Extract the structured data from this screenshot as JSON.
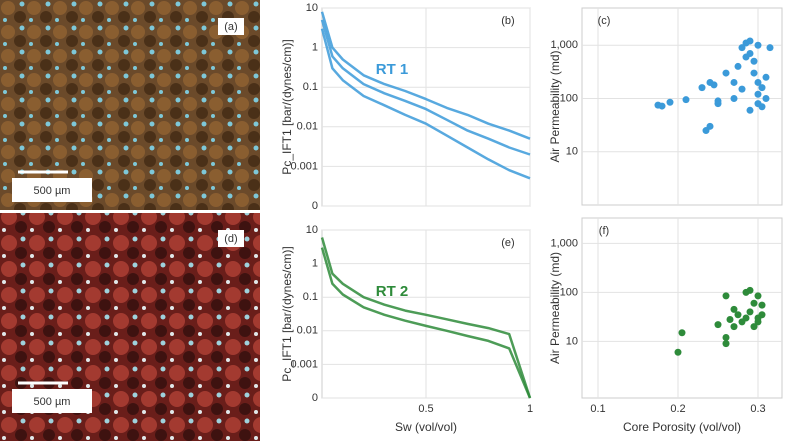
{
  "images": [
    {
      "label": "(a)",
      "scale": "500 µm"
    },
    {
      "label": "(d)",
      "scale": "500 µm"
    }
  ],
  "chart_data": [
    {
      "type": "line",
      "panel_label": "(b)",
      "annotation": "RT 1",
      "ylabel": "Pc_IFT1 [bar/(dynes/cm)]",
      "ylog": true,
      "ylim": [
        0.0001,
        10
      ],
      "yticks": [
        {
          "value": 0.0001,
          "label": "0"
        },
        0.001,
        0.01,
        0.1,
        1,
        10
      ],
      "xlim": [
        0,
        1
      ],
      "xticks": [
        0.5,
        1
      ],
      "show_xtick_labels": false,
      "grid": true,
      "x": [
        0,
        0.05,
        0.1,
        0.2,
        0.3,
        0.4,
        0.5,
        0.6,
        0.7,
        0.8,
        0.9,
        1
      ],
      "series": [
        {
          "color": "#3b9ad9",
          "values": [
            8,
            1.0,
            0.5,
            0.2,
            0.12,
            0.08,
            0.05,
            0.03,
            0.02,
            0.012,
            0.008,
            0.005
          ]
        },
        {
          "color": "#3b9ad9",
          "values": [
            5,
            0.6,
            0.3,
            0.12,
            0.07,
            0.045,
            0.028,
            0.015,
            0.008,
            0.005,
            0.003,
            0.002
          ]
        },
        {
          "color": "#3b9ad9",
          "values": [
            3,
            0.3,
            0.15,
            0.06,
            0.035,
            0.02,
            0.012,
            0.006,
            0.003,
            0.0015,
            0.0008,
            0.0005
          ]
        }
      ]
    },
    {
      "type": "scatter",
      "panel_label": "(c)",
      "ylabel": "Air Permeability (md)",
      "ylog": true,
      "ylim": [
        1,
        5000
      ],
      "yticks": [
        10,
        100,
        {
          "value": 1000,
          "label": "1,000"
        }
      ],
      "xlim": [
        0.08,
        0.33
      ],
      "xticks": [
        0.1,
        0.2,
        0.3
      ],
      "show_xtick_labels": false,
      "grid": true,
      "x": [
        0.175,
        0.18,
        0.19,
        0.21,
        0.23,
        0.24,
        0.235,
        0.24,
        0.245,
        0.25,
        0.26,
        0.27,
        0.275,
        0.28,
        0.285,
        0.285,
        0.29,
        0.29,
        0.295,
        0.295,
        0.3,
        0.3,
        0.3,
        0.305,
        0.31,
        0.31,
        0.315,
        0.3,
        0.28,
        0.29,
        0.305,
        0.27,
        0.25
      ],
      "series": [
        {
          "color": "#3b9ad9",
          "values": [
            75,
            72,
            85,
            95,
            160,
            200,
            25,
            30,
            180,
            80,
            300,
            100,
            400,
            900,
            1100,
            600,
            1200,
            700,
            300,
            500,
            200,
            120,
            80,
            160,
            250,
            100,
            900,
            1000,
            150,
            60,
            70,
            200,
            90
          ]
        }
      ]
    },
    {
      "type": "line",
      "panel_label": "(e)",
      "annotation": "RT 2",
      "ylabel": "Pc_IFT1 [bar/(dynes/cm)]",
      "xlabel": "Sw (vol/vol)",
      "ylog": true,
      "ylim": [
        0.0001,
        10
      ],
      "yticks": [
        {
          "value": 0.0001,
          "label": "0"
        },
        0.001,
        0.01,
        0.1,
        1,
        10
      ],
      "xlim": [
        0,
        1
      ],
      "xticks": [
        0.5,
        1
      ],
      "show_xtick_labels": true,
      "grid": true,
      "x": [
        0,
        0.05,
        0.1,
        0.2,
        0.3,
        0.4,
        0.5,
        0.6,
        0.7,
        0.8,
        0.9,
        1
      ],
      "series": [
        {
          "color": "#2e8b3a",
          "values": [
            6,
            0.5,
            0.25,
            0.1,
            0.06,
            0.04,
            0.03,
            0.022,
            0.016,
            0.012,
            0.008,
            0.0001
          ]
        },
        {
          "color": "#2e8b3a",
          "values": [
            3,
            0.25,
            0.12,
            0.05,
            0.03,
            0.02,
            0.014,
            0.01,
            0.007,
            0.005,
            0.003,
            0.0001
          ]
        }
      ]
    },
    {
      "type": "scatter",
      "panel_label": "(f)",
      "ylabel": "Air Permeability (md)",
      "xlabel": "Core Porosity (vol/vol)",
      "ylog": true,
      "ylim": [
        0.7,
        3300
      ],
      "yticks": [
        10,
        100,
        {
          "value": 1000,
          "label": "1,000"
        }
      ],
      "xlim": [
        0.08,
        0.33
      ],
      "xticks": [
        0.1,
        0.2,
        0.3
      ],
      "show_xtick_labels": true,
      "grid": true,
      "x": [
        0.2,
        0.205,
        0.25,
        0.26,
        0.26,
        0.26,
        0.265,
        0.27,
        0.275,
        0.28,
        0.285,
        0.285,
        0.29,
        0.29,
        0.295,
        0.295,
        0.3,
        0.3,
        0.3,
        0.305,
        0.305,
        0.27
      ],
      "series": [
        {
          "color": "#2e8b3a",
          "values": [
            6,
            15,
            22,
            12,
            9,
            85,
            28,
            20,
            35,
            25,
            30,
            100,
            110,
            40,
            60,
            20,
            25,
            85,
            30,
            55,
            35,
            45
          ]
        }
      ]
    }
  ]
}
